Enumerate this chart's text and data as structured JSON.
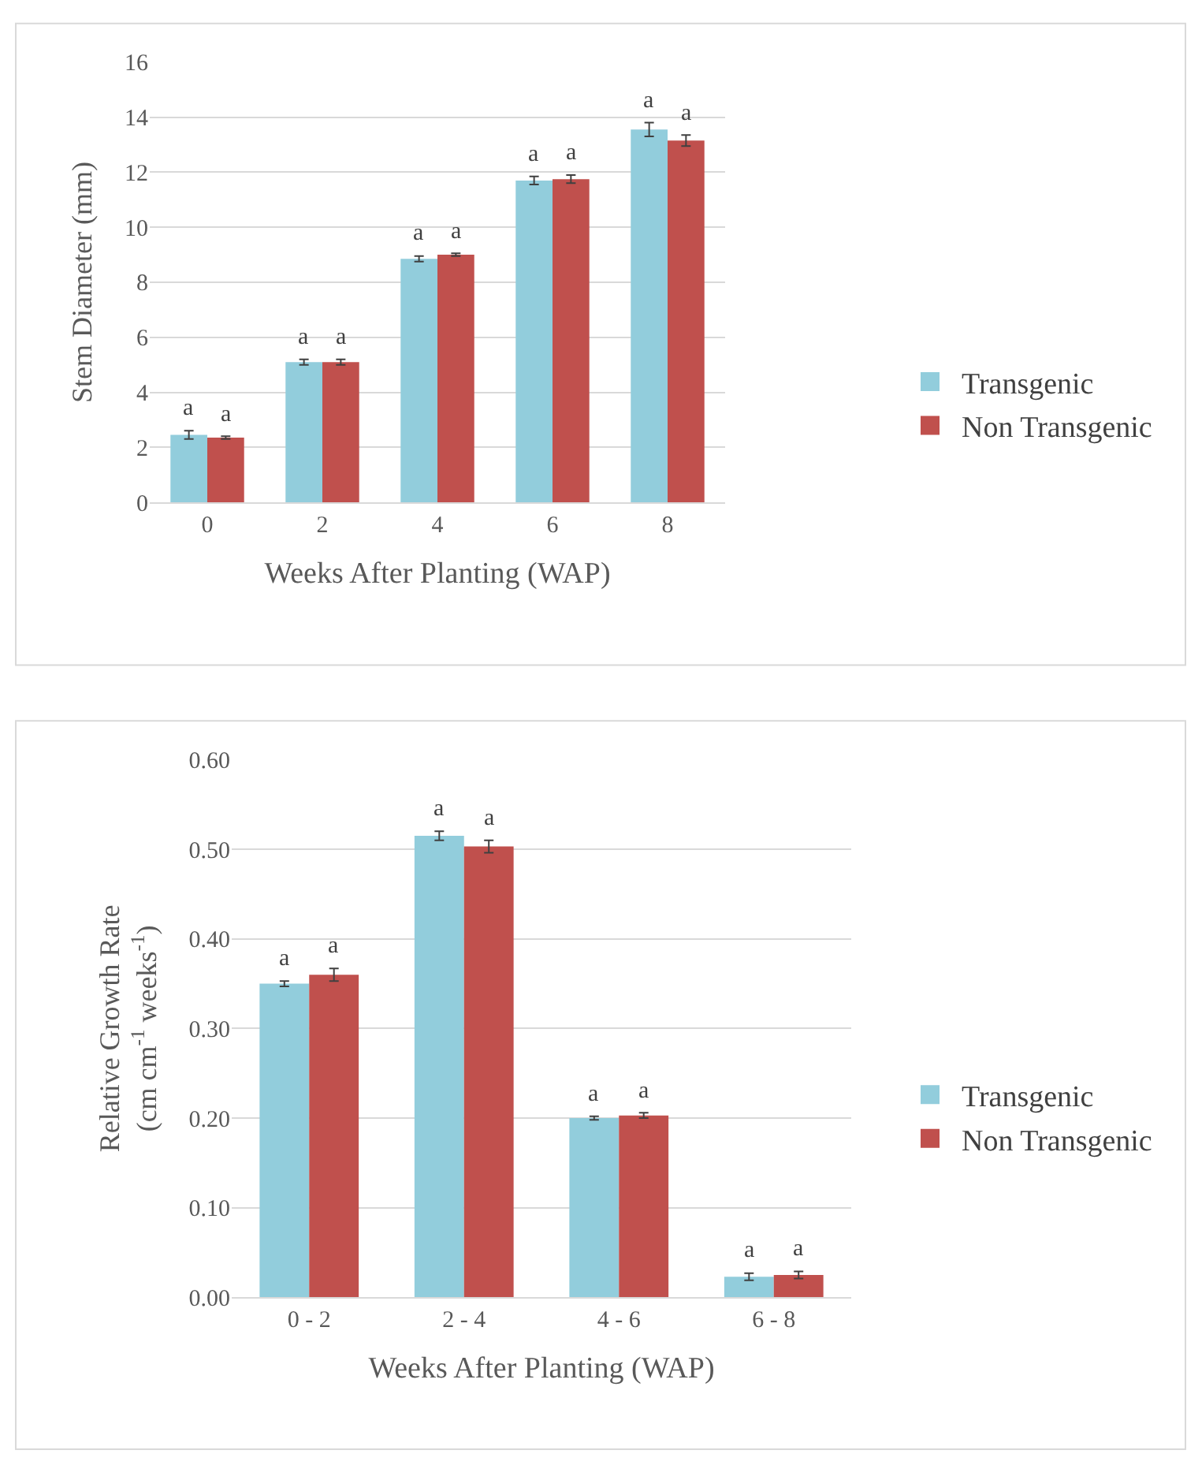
{
  "chart_data": [
    {
      "type": "bar",
      "xlabel": "Weeks After Planting (WAP)",
      "ylabel": "Stem Diameter (mm)",
      "categories": [
        "0",
        "2",
        "4",
        "6",
        "8"
      ],
      "series": [
        {
          "name": "Transgenic",
          "color": "#92cddc",
          "values": [
            2.45,
            5.1,
            8.85,
            11.7,
            13.55
          ],
          "errors": [
            0.15,
            0.1,
            0.1,
            0.15,
            0.25
          ],
          "value_labels": [
            "a",
            "a",
            "a",
            "a",
            "a"
          ]
        },
        {
          "name": "Non Transgenic",
          "color": "#c0504d",
          "values": [
            2.35,
            5.1,
            9.0,
            11.75,
            13.15
          ],
          "errors": [
            0.05,
            0.1,
            0.05,
            0.15,
            0.2
          ],
          "value_labels": [
            "a",
            "a",
            "a",
            "a",
            "a"
          ]
        }
      ],
      "ylim": [
        0,
        16
      ],
      "yticks": [
        0,
        2,
        4,
        6,
        8,
        10,
        12,
        14,
        16
      ],
      "grid": "y",
      "legend": "right"
    },
    {
      "type": "bar",
      "xlabel": "Weeks After Planting (WAP)",
      "ylabel": "Relative Growth Rate\n(cm cm$^{-1}$ weeks$^{-1}$)",
      "categories": [
        "0 - 2",
        "2 - 4",
        "4 - 6",
        "6 - 8"
      ],
      "series": [
        {
          "name": "Transgenic",
          "color": "#92cddc",
          "values": [
            0.35,
            0.515,
            0.2,
            0.023
          ],
          "errors": [
            0.003,
            0.005,
            0.002,
            0.004
          ],
          "value_labels": [
            "a",
            "a",
            "a",
            "a"
          ]
        },
        {
          "name": "Non Transgenic",
          "color": "#c0504d",
          "values": [
            0.36,
            0.503,
            0.203,
            0.025
          ],
          "errors": [
            0.007,
            0.007,
            0.003,
            0.004
          ],
          "value_labels": [
            "a",
            "a",
            "a",
            "a"
          ]
        }
      ],
      "ylim": [
        0,
        0.6
      ],
      "yticks": [
        {
          "value": 0,
          "label": "0.00"
        },
        {
          "value": 0.1,
          "label": "0.10"
        },
        {
          "value": 0.2,
          "label": "0.20"
        },
        {
          "value": 0.3,
          "label": "0.30"
        },
        {
          "value": 0.4,
          "label": "0.40"
        },
        {
          "value": 0.5,
          "label": "0.50"
        },
        {
          "value": 0.6,
          "label": "0.60"
        }
      ],
      "grid": "y",
      "legend": "right"
    }
  ]
}
